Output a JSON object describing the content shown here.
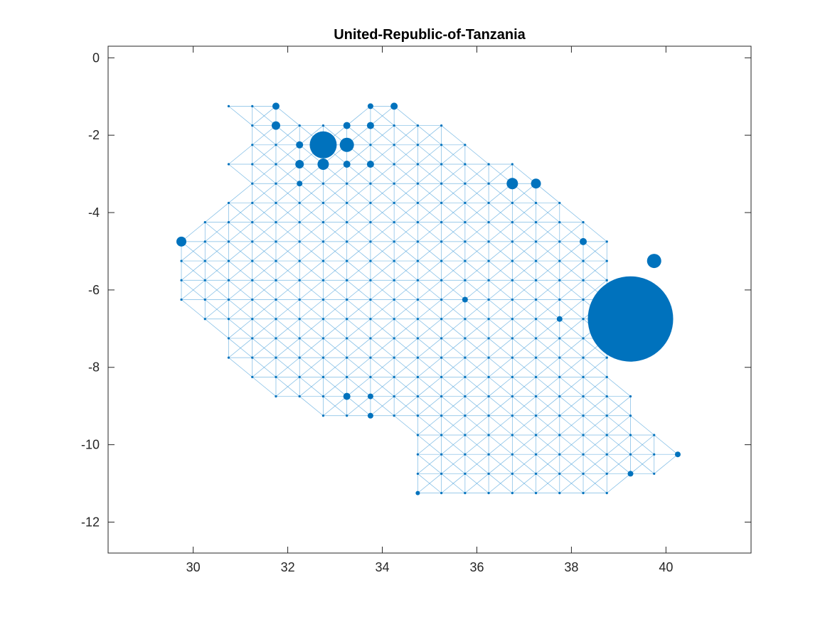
{
  "colors": {
    "background": "#ffffff",
    "marker": "#0072BD",
    "edge": "#4FA3DB",
    "axis": "#262626"
  },
  "chart_data": {
    "type": "scatter",
    "title": "United-Republic-of-Tanzania",
    "xlabel": "",
    "ylabel": "",
    "xlim": [
      28.2,
      41.8
    ],
    "ylim": [
      -12.8,
      0.3
    ],
    "xticks": [
      30,
      32,
      34,
      36,
      38,
      40
    ],
    "yticks": [
      0,
      -2,
      -4,
      -6,
      -8,
      -10,
      -12
    ],
    "grid": false,
    "legend": "none",
    "grid_step": 0.5,
    "rows": [
      {
        "y": -1.25,
        "x": [
          [
            30.75,
            31.75
          ],
          [
            33.75,
            34.25
          ]
        ]
      },
      {
        "y": -1.75,
        "x": [
          [
            31.25,
            35.25
          ]
        ]
      },
      {
        "y": -2.25,
        "x": [
          [
            31.25,
            35.75
          ]
        ]
      },
      {
        "y": -2.75,
        "x": [
          [
            30.75,
            36.75
          ]
        ]
      },
      {
        "y": -3.25,
        "x": [
          [
            31.25,
            37.25
          ]
        ]
      },
      {
        "y": -3.75,
        "x": [
          [
            30.75,
            37.75
          ]
        ]
      },
      {
        "y": -4.25,
        "x": [
          [
            30.25,
            38.25
          ]
        ]
      },
      {
        "y": -4.75,
        "x": [
          [
            29.75,
            38.75
          ]
        ]
      },
      {
        "y": -5.25,
        "x": [
          [
            29.75,
            38.75
          ]
        ]
      },
      {
        "y": -5.75,
        "x": [
          [
            29.75,
            38.75
          ]
        ]
      },
      {
        "y": -6.25,
        "x": [
          [
            29.75,
            38.75
          ]
        ]
      },
      {
        "y": -6.75,
        "x": [
          [
            30.25,
            39.25
          ]
        ]
      },
      {
        "y": -7.25,
        "x": [
          [
            30.75,
            38.75
          ]
        ]
      },
      {
        "y": -7.75,
        "x": [
          [
            30.75,
            38.75
          ]
        ]
      },
      {
        "y": -8.25,
        "x": [
          [
            31.25,
            38.75
          ]
        ]
      },
      {
        "y": -8.75,
        "x": [
          [
            31.75,
            39.25
          ]
        ]
      },
      {
        "y": -9.25,
        "x": [
          [
            32.75,
            39.25
          ]
        ]
      },
      {
        "y": -9.75,
        "x": [
          [
            34.75,
            39.75
          ]
        ]
      },
      {
        "y": -10.25,
        "x": [
          [
            34.75,
            40.25
          ]
        ]
      },
      {
        "y": -10.75,
        "x": [
          [
            34.75,
            39.75
          ]
        ]
      },
      {
        "y": -11.25,
        "x": [
          [
            34.75,
            38.75
          ]
        ]
      }
    ],
    "sized_points": [
      {
        "x": 31.75,
        "y": -1.25,
        "size": 5
      },
      {
        "x": 34.25,
        "y": -1.25,
        "size": 5
      },
      {
        "x": 33.75,
        "y": -1.25,
        "size": 4
      },
      {
        "x": 31.75,
        "y": -1.75,
        "size": 6
      },
      {
        "x": 33.25,
        "y": -1.75,
        "size": 5
      },
      {
        "x": 33.75,
        "y": -1.75,
        "size": 5
      },
      {
        "x": 32.75,
        "y": -2.25,
        "size": 19
      },
      {
        "x": 33.25,
        "y": -2.25,
        "size": 10
      },
      {
        "x": 32.25,
        "y": -2.25,
        "size": 5
      },
      {
        "x": 32.75,
        "y": -2.75,
        "size": 8
      },
      {
        "x": 32.25,
        "y": -2.75,
        "size": 6
      },
      {
        "x": 33.25,
        "y": -2.75,
        "size": 5
      },
      {
        "x": 33.75,
        "y": -2.75,
        "size": 5
      },
      {
        "x": 36.75,
        "y": -3.25,
        "size": 8
      },
      {
        "x": 37.25,
        "y": -3.25,
        "size": 7
      },
      {
        "x": 32.25,
        "y": -3.25,
        "size": 4
      },
      {
        "x": 29.75,
        "y": -4.75,
        "size": 7
      },
      {
        "x": 38.25,
        "y": -4.75,
        "size": 5
      },
      {
        "x": 39.75,
        "y": -5.25,
        "size": 10
      },
      {
        "x": 39.25,
        "y": -6.75,
        "size": 60
      },
      {
        "x": 35.75,
        "y": -6.25,
        "size": 4
      },
      {
        "x": 37.75,
        "y": -6.75,
        "size": 4
      },
      {
        "x": 33.25,
        "y": -8.75,
        "size": 5
      },
      {
        "x": 33.75,
        "y": -8.75,
        "size": 4
      },
      {
        "x": 33.75,
        "y": -9.25,
        "size": 4
      },
      {
        "x": 39.25,
        "y": -10.75,
        "size": 4
      },
      {
        "x": 40.25,
        "y": -10.25,
        "size": 4
      },
      {
        "x": 34.75,
        "y": -11.25,
        "size": 3
      }
    ]
  }
}
